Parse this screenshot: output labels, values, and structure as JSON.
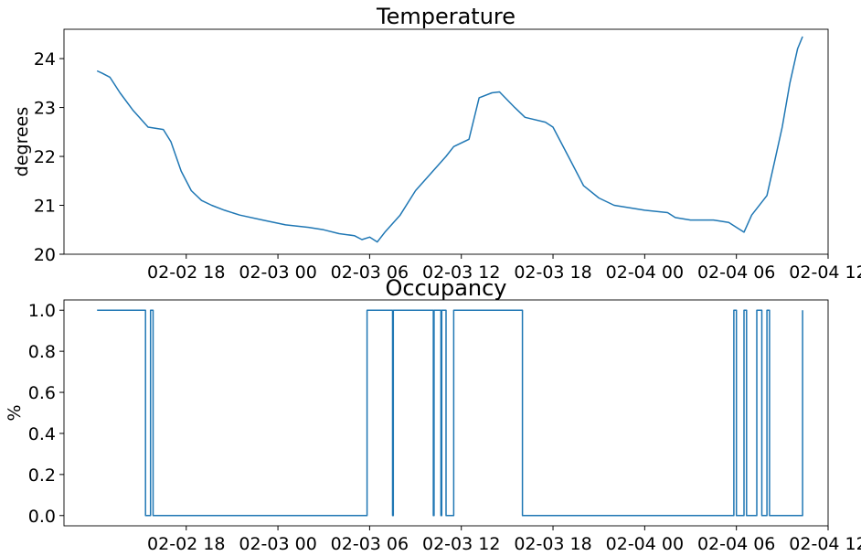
{
  "chart_data": [
    {
      "type": "line",
      "title": "Temperature",
      "xlabel": "",
      "ylabel": "degrees",
      "xlim": [
        "2020-02-02 10:00",
        "2020-02-04 12:00"
      ],
      "ylim": [
        20,
        24.6
      ],
      "grid": false,
      "x_ticks": [
        "02-02 18",
        "02-03 00",
        "02-03 06",
        "02-03 12",
        "02-03 18",
        "02-04 00",
        "02-04 06",
        "02-04 12"
      ],
      "y_ticks": [
        "20",
        "21",
        "22",
        "23",
        "24"
      ],
      "color": "#1f77b4",
      "x": [
        "2020-02-02 12:10",
        "2020-02-02 12:30",
        "2020-02-02 13:00",
        "2020-02-02 13:40",
        "2020-02-02 14:30",
        "2020-02-02 15:30",
        "2020-02-02 16:30",
        "2020-02-02 17:00",
        "2020-02-02 17:40",
        "2020-02-02 18:20",
        "2020-02-02 19:00",
        "2020-02-02 19:40",
        "2020-02-02 20:30",
        "2020-02-02 21:30",
        "2020-02-02 23:00",
        "2020-02-03 00:30",
        "2020-02-03 02:00",
        "2020-02-03 03:00",
        "2020-02-03 04:00",
        "2020-02-03 05:00",
        "2020-02-03 05:30",
        "2020-02-03 06:00",
        "2020-02-03 06:30",
        "2020-02-03 07:00",
        "2020-02-03 08:00",
        "2020-02-03 09:00",
        "2020-02-03 10:00",
        "2020-02-03 11:00",
        "2020-02-03 11:30",
        "2020-02-03 12:30",
        "2020-02-03 13:10",
        "2020-02-03 14:00",
        "2020-02-03 14:30",
        "2020-02-03 15:30",
        "2020-02-03 16:10",
        "2020-02-03 17:30",
        "2020-02-03 18:00",
        "2020-02-03 18:30",
        "2020-02-03 19:00",
        "2020-02-03 20:00",
        "2020-02-03 21:00",
        "2020-02-03 22:00",
        "2020-02-04 00:00",
        "2020-02-04 01:30",
        "2020-02-04 02:00",
        "2020-02-04 03:00",
        "2020-02-04 04:30",
        "2020-02-04 05:30",
        "2020-02-04 06:00",
        "2020-02-04 06:30",
        "2020-02-04 07:00",
        "2020-02-04 08:00",
        "2020-02-04 08:30",
        "2020-02-04 09:00",
        "2020-02-04 09:30",
        "2020-02-04 10:00",
        "2020-02-04 10:20"
      ],
      "values": [
        23.75,
        23.7,
        23.62,
        23.3,
        22.95,
        22.6,
        22.55,
        22.3,
        21.7,
        21.3,
        21.1,
        21.0,
        20.9,
        20.8,
        20.7,
        20.6,
        20.55,
        20.5,
        20.42,
        20.38,
        20.3,
        20.35,
        20.25,
        20.45,
        20.8,
        21.3,
        21.65,
        22.0,
        22.2,
        22.35,
        23.2,
        23.3,
        23.32,
        23.0,
        22.8,
        22.7,
        22.6,
        22.3,
        22.0,
        21.4,
        21.15,
        21.0,
        20.9,
        20.85,
        20.75,
        20.7,
        20.7,
        20.65,
        20.55,
        20.45,
        20.8,
        21.2,
        21.9,
        22.6,
        23.5,
        24.2,
        24.45
      ]
    },
    {
      "type": "line",
      "title": "Occupancy",
      "xlabel": "",
      "ylabel": "%",
      "xlim": [
        "2020-02-02 10:00",
        "2020-02-04 12:00"
      ],
      "ylim": [
        -0.05,
        1.05
      ],
      "grid": false,
      "x_ticks": [
        "02-02 18",
        "02-03 00",
        "02-03 06",
        "02-03 12",
        "02-03 18",
        "02-04 00",
        "02-04 06",
        "02-04 12"
      ],
      "y_ticks": [
        "0.0",
        "0.2",
        "0.4",
        "0.6",
        "0.8",
        "1.0"
      ],
      "color": "#1f77b4",
      "step": true,
      "x": [
        "2020-02-02 12:10",
        "2020-02-02 15:20",
        "2020-02-02 15:40",
        "2020-02-02 15:50",
        "2020-02-03 05:50",
        "2020-02-03 06:00",
        "2020-02-03 07:30",
        "2020-02-03 07:33",
        "2020-02-03 10:10",
        "2020-02-03 10:13",
        "2020-02-03 10:40",
        "2020-02-03 10:43",
        "2020-02-03 11:00",
        "2020-02-03 11:20",
        "2020-02-03 11:30",
        "2020-02-03 11:40",
        "2020-02-03 16:00",
        "2020-02-04 05:50",
        "2020-02-04 06:00",
        "2020-02-04 06:30",
        "2020-02-04 06:40",
        "2020-02-04 07:20",
        "2020-02-04 07:40",
        "2020-02-04 08:00",
        "2020-02-04 08:10",
        "2020-02-04 10:20"
      ],
      "values": [
        1,
        0,
        1,
        0,
        1,
        1,
        0,
        1,
        0,
        1,
        0,
        1,
        0,
        0,
        1,
        1,
        0,
        1,
        0,
        1,
        0,
        1,
        0,
        1,
        0,
        1
      ]
    }
  ]
}
